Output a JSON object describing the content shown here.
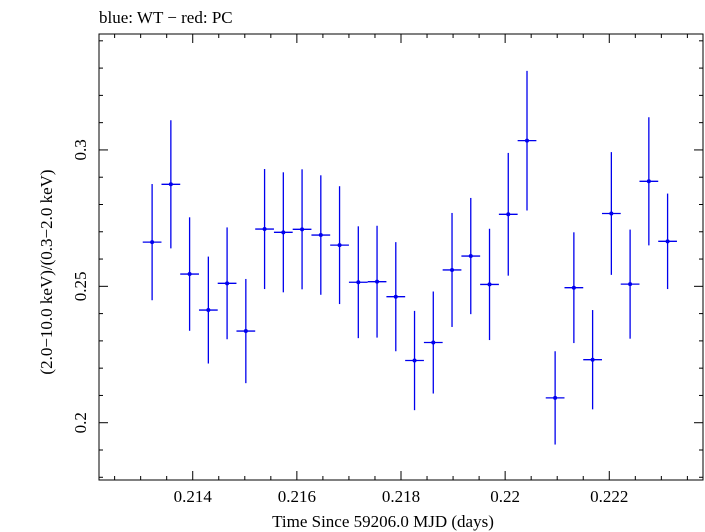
{
  "chart_data": {
    "type": "scatter",
    "title": "blue: WT − red: PC",
    "xlabel": "Time Since 59206.0 MJD (days)",
    "ylabel": "(2.0−10.0 keV)/(0.3−2.0 keV)",
    "xlim": [
      0.2122,
      0.2238
    ],
    "ylim": [
      0.179,
      0.3425
    ],
    "x_ticks": [
      0.214,
      0.216,
      0.218,
      0.22,
      0.222
    ],
    "x_tick_labels": [
      "0.214",
      "0.216",
      "0.218",
      "0.22",
      "0.222"
    ],
    "y_ticks": [
      0.2,
      0.25,
      0.3
    ],
    "y_tick_labels": [
      "0.2",
      "0.25",
      "0.3"
    ],
    "grid": false,
    "series": [
      {
        "color": "#0000ee",
        "points": [
          {
            "x": 0.21322,
            "xerr": 0.00018,
            "y": 0.2662,
            "yerr": 0.0213
          },
          {
            "x": 0.21358,
            "xerr": 0.00018,
            "y": 0.2874,
            "yerr": 0.0235
          },
          {
            "x": 0.21394,
            "xerr": 0.00018,
            "y": 0.2545,
            "yerr": 0.0208
          },
          {
            "x": 0.2143,
            "xerr": 0.00018,
            "y": 0.2413,
            "yerr": 0.0196
          },
          {
            "x": 0.21466,
            "xerr": 0.00018,
            "y": 0.2511,
            "yerr": 0.0205
          },
          {
            "x": 0.21502,
            "xerr": 0.00018,
            "y": 0.2336,
            "yerr": 0.0191
          },
          {
            "x": 0.21538,
            "xerr": 0.00018,
            "y": 0.271,
            "yerr": 0.022
          },
          {
            "x": 0.21574,
            "xerr": 0.00018,
            "y": 0.2698,
            "yerr": 0.022
          },
          {
            "x": 0.2161,
            "xerr": 0.00018,
            "y": 0.2709,
            "yerr": 0.022
          },
          {
            "x": 0.21646,
            "xerr": 0.00018,
            "y": 0.2688,
            "yerr": 0.0219
          },
          {
            "x": 0.21682,
            "xerr": 0.00018,
            "y": 0.2651,
            "yerr": 0.0216
          },
          {
            "x": 0.21718,
            "xerr": 0.00018,
            "y": 0.2515,
            "yerr": 0.0205
          },
          {
            "x": 0.21754,
            "xerr": 0.00018,
            "y": 0.2517,
            "yerr": 0.0205
          },
          {
            "x": 0.2179,
            "xerr": 0.00018,
            "y": 0.2462,
            "yerr": 0.02
          },
          {
            "x": 0.21826,
            "xerr": 0.00018,
            "y": 0.2228,
            "yerr": 0.0182
          },
          {
            "x": 0.21862,
            "xerr": 0.00018,
            "y": 0.2294,
            "yerr": 0.0187
          },
          {
            "x": 0.21898,
            "xerr": 0.00018,
            "y": 0.256,
            "yerr": 0.0209
          },
          {
            "x": 0.21934,
            "xerr": 0.00018,
            "y": 0.2611,
            "yerr": 0.0213
          },
          {
            "x": 0.2197,
            "xerr": 0.00018,
            "y": 0.2507,
            "yerr": 0.0204
          },
          {
            "x": 0.22006,
            "xerr": 0.00018,
            "y": 0.2764,
            "yerr": 0.0225
          },
          {
            "x": 0.22042,
            "xerr": 0.00018,
            "y": 0.3034,
            "yerr": 0.0256
          },
          {
            "x": 0.22096,
            "xerr": 0.00018,
            "y": 0.2091,
            "yerr": 0.0171
          },
          {
            "x": 0.22132,
            "xerr": 0.00018,
            "y": 0.2495,
            "yerr": 0.0203
          },
          {
            "x": 0.22168,
            "xerr": 0.00018,
            "y": 0.2231,
            "yerr": 0.0182
          },
          {
            "x": 0.22204,
            "xerr": 0.00018,
            "y": 0.2767,
            "yerr": 0.0225
          },
          {
            "x": 0.2224,
            "xerr": 0.00018,
            "y": 0.2508,
            "yerr": 0.02
          },
          {
            "x": 0.22276,
            "xerr": 0.00018,
            "y": 0.2885,
            "yerr": 0.0235
          },
          {
            "x": 0.22312,
            "xerr": 0.00018,
            "y": 0.2665,
            "yerr": 0.0175
          }
        ]
      }
    ]
  }
}
